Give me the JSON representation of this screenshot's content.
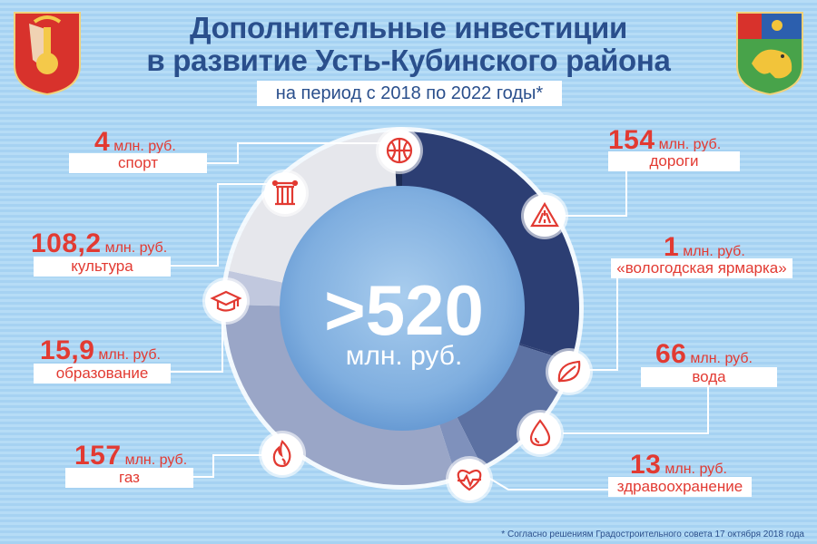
{
  "header": {
    "title_line1": "Дополнительные инвестиции",
    "title_line2": "в развитие Усть-Кубинского района",
    "subtitle": "на период с 2018 по 2022 годы*"
  },
  "center": {
    "value": ">520",
    "unit": "млн. руб."
  },
  "footnote": "* Согласно решениям Градостроительного совета 17 октября 2018 года",
  "colors": {
    "accent": "#e23a32",
    "title": "#2a4f8c"
  },
  "chart_data": {
    "type": "pie",
    "title": "Дополнительные инвестиции в развитие Усть-Кубинского района",
    "unit": "млн. руб.",
    "total_label": ">520 млн. руб.",
    "categories": [
      "дороги",
      "«вологодская ярмарка»",
      "вода",
      "здравоохранение",
      "газ",
      "образование",
      "культура",
      "спорт"
    ],
    "values": [
      154,
      1,
      66,
      13,
      157,
      15.9,
      108.2,
      4
    ],
    "value_labels": [
      "154",
      "1",
      "66",
      "13",
      "157",
      "15,9",
      "108,2",
      "4"
    ],
    "colors": [
      "#2c3e73",
      "#2c3e73",
      "#5c71a2",
      "#7f91bc",
      "#9aa6c7",
      "#c1c8de",
      "#e6e7ec",
      "#1e2d55"
    ],
    "icons": [
      "road-warning-icon",
      "leaf-icon",
      "water-drop-icon",
      "heart-pulse-icon",
      "flame-icon",
      "graduation-cap-icon",
      "column-icon",
      "basketball-icon"
    ]
  }
}
